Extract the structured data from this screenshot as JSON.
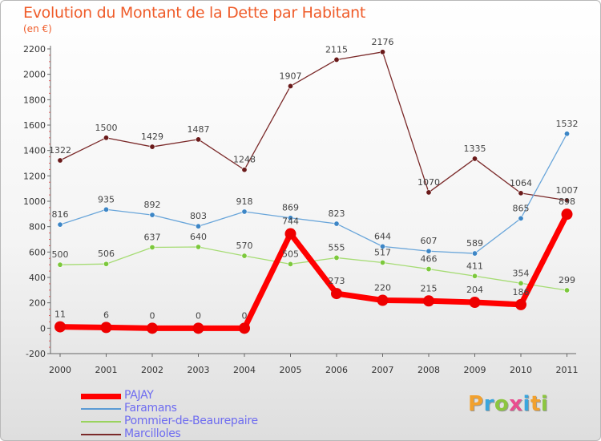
{
  "chart_data": {
    "type": "line",
    "title": "Evolution du Montant de la Dette par Habitant",
    "subtitle": "(en €)",
    "x": [
      "2000",
      "2001",
      "2002",
      "2003",
      "2004",
      "2005",
      "2006",
      "2007",
      "2008",
      "2009",
      "2010",
      "2011"
    ],
    "ylim": [
      -200,
      2200
    ],
    "yticks": [
      "-200",
      "0",
      "200",
      "400",
      "600",
      "800",
      "1000",
      "1200",
      "1400",
      "1600",
      "1800",
      "2000",
      "2200"
    ],
    "grid": false,
    "legend_position": "bottom-left",
    "series": [
      {
        "name": "PAJAY",
        "color": "#ff0000",
        "values": [
          11,
          6,
          0,
          0,
          0,
          744,
          273,
          220,
          215,
          204,
          186,
          898
        ],
        "labels": [
          "11",
          "6",
          "0",
          "0",
          "0",
          "744",
          "273",
          "220",
          "215",
          "204",
          "186",
          "898"
        ]
      },
      {
        "name": "Faramans",
        "color": "#5b9bd5",
        "values": [
          816,
          935,
          892,
          803,
          918,
          869,
          823,
          644,
          607,
          589,
          865,
          1532
        ],
        "labels": [
          "816",
          "935",
          "892",
          "803",
          "918",
          "869",
          "823",
          "644",
          "607",
          "589",
          "865",
          "1532"
        ]
      },
      {
        "name": "Pommier-de-Beaurepaire",
        "color": "#9ad35e",
        "values": [
          500,
          506,
          637,
          640,
          570,
          505,
          555,
          517,
          466,
          411,
          354,
          299
        ],
        "labels": [
          "500",
          "506",
          "637",
          "640",
          "570",
          "505",
          "555",
          "517",
          "466",
          "411",
          "354",
          "299"
        ]
      },
      {
        "name": "Marcilloles",
        "color": "#7b2a2a",
        "values": [
          1322,
          1500,
          1429,
          1487,
          1248,
          1907,
          2115,
          2176,
          1070,
          1335,
          1064,
          1007
        ],
        "labels": [
          "1322",
          "1500",
          "1429",
          "1487",
          "1248",
          "1907",
          "2115",
          "2176",
          "1070",
          "1335",
          "1064",
          "1007"
        ]
      }
    ]
  },
  "logo": {
    "letters": [
      {
        "ch": "P",
        "color": "#f2a12e"
      },
      {
        "ch": "r",
        "color": "#3aa6dd"
      },
      {
        "ch": "o",
        "color": "#8cc63f"
      },
      {
        "ch": "x",
        "color": "#e94e8f"
      },
      {
        "ch": "i",
        "color": "#3aa6dd"
      },
      {
        "ch": "t",
        "color": "#f2a12e"
      },
      {
        "ch": "i",
        "color": "#8cc63f"
      }
    ]
  }
}
